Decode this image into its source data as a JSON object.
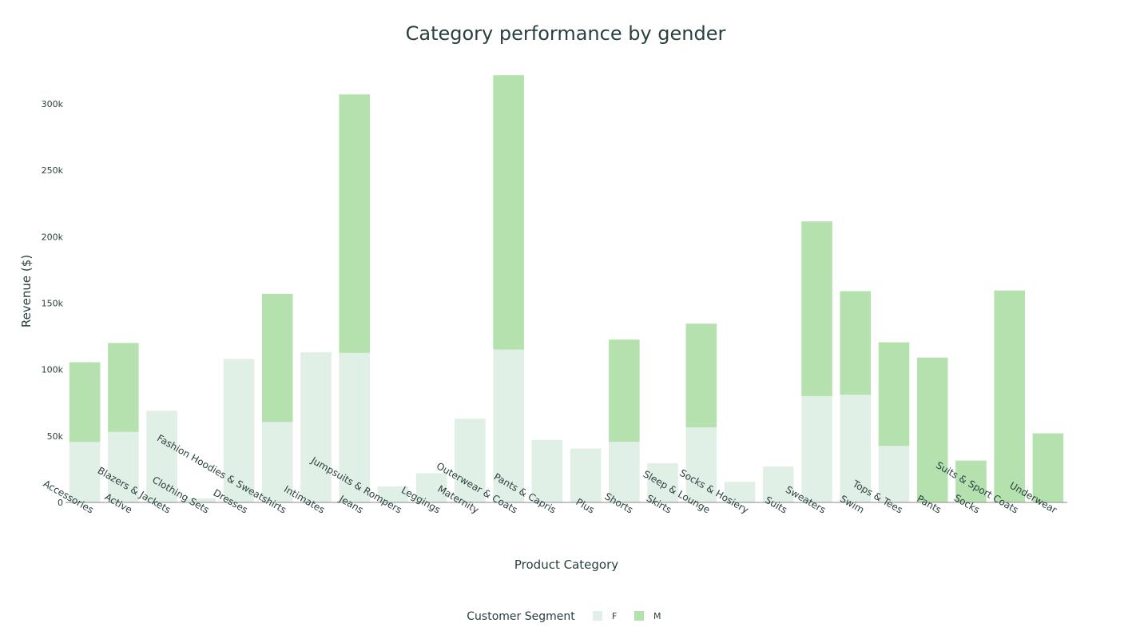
{
  "chart_data": {
    "type": "bar",
    "stacked": true,
    "title": "Category performance by gender",
    "xlabel": "Product Category",
    "ylabel": "Revenue ($)",
    "ylim": [
      0,
      330000
    ],
    "yticks": [
      {
        "value": 0,
        "label": "0"
      },
      {
        "value": 50000,
        "label": "50k"
      },
      {
        "value": 100000,
        "label": "100k"
      },
      {
        "value": 150000,
        "label": "150k"
      },
      {
        "value": 200000,
        "label": "200k"
      },
      {
        "value": 250000,
        "label": "250k"
      },
      {
        "value": 300000,
        "label": "300k"
      }
    ],
    "grid": false,
    "legend": {
      "title": "Customer Segment",
      "placement": "bottom-center"
    },
    "categories": [
      "Accessories",
      "Active",
      "Blazers & Jackets",
      "Clothing Sets",
      "Dresses",
      "Fashion Hoodies & Sweatshirts",
      "Intimates",
      "Jeans",
      "Jumpsuits & Rompers",
      "Leggings",
      "Maternity",
      "Outerwear & Coats",
      "Pants & Capris",
      "Plus",
      "Shorts",
      "Skirts",
      "Sleep & Lounge",
      "Socks & Hosiery",
      "Suits",
      "Sweaters",
      "Swim",
      "Tops & Tees",
      "Pants",
      "Socks",
      "Suits & Sport Coats",
      "Underwear"
    ],
    "series": [
      {
        "name": "F",
        "color": "#e1f0e6",
        "values": [
          45500,
          53000,
          69000,
          3000,
          108000,
          60500,
          113000,
          112500,
          12000,
          22000,
          63000,
          115000,
          47000,
          40500,
          45500,
          29500,
          56500,
          15500,
          27000,
          80000,
          81000,
          42500,
          0,
          0,
          0,
          0
        ]
      },
      {
        "name": "M",
        "color": "#b5e1ae",
        "values": [
          60000,
          67000,
          0,
          0,
          0,
          96500,
          0,
          194500,
          0,
          0,
          0,
          206500,
          0,
          0,
          77000,
          0,
          78000,
          0,
          0,
          131500,
          78000,
          78000,
          109000,
          31500,
          159500,
          52000
        ]
      }
    ]
  }
}
